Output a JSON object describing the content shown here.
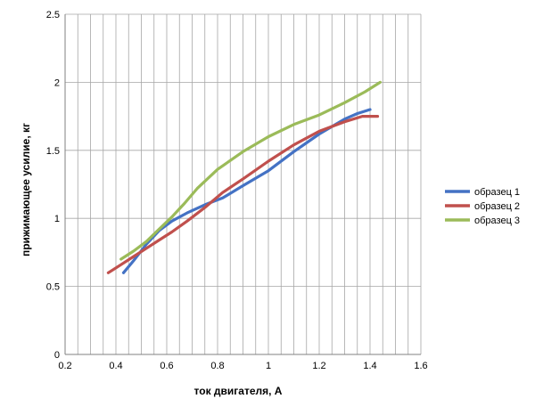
{
  "chart_data": {
    "type": "line",
    "title": "",
    "xlabel": "ток двигателя, А",
    "ylabel": "прижимающее усилие, кг",
    "xlim": [
      0.2,
      1.6
    ],
    "ylim": [
      0,
      2.5
    ],
    "x_ticks": [
      "0.2",
      "0.4",
      "0.6",
      "0.8",
      "1",
      "1.2",
      "1.4",
      "1.6"
    ],
    "y_ticks": [
      "0",
      "0.5",
      "1",
      "1.5",
      "2",
      "2.5"
    ],
    "x_tick_values": [
      0.2,
      0.4,
      0.6,
      0.8,
      1.0,
      1.2,
      1.4,
      1.6
    ],
    "y_tick_values": [
      0,
      0.5,
      1.0,
      1.5,
      2.0,
      2.5
    ],
    "grid": {
      "vertical_minor_step": 0.05,
      "horizontal_step": 0.5
    },
    "legend_position": "right",
    "series": [
      {
        "name": "образец 1",
        "color": "#4472C4",
        "x": [
          0.43,
          0.47,
          0.52,
          0.57,
          0.62,
          0.68,
          0.75,
          0.82,
          0.9,
          1.0,
          1.1,
          1.2,
          1.3,
          1.35,
          1.4
        ],
        "y": [
          0.6,
          0.69,
          0.81,
          0.91,
          0.98,
          1.04,
          1.1,
          1.15,
          1.24,
          1.35,
          1.49,
          1.62,
          1.73,
          1.77,
          1.8
        ]
      },
      {
        "name": "образец 2",
        "color": "#C0504D",
        "x": [
          0.37,
          0.42,
          0.47,
          0.52,
          0.57,
          0.62,
          0.68,
          0.75,
          0.82,
          0.9,
          1.0,
          1.1,
          1.2,
          1.3,
          1.37,
          1.43
        ],
        "y": [
          0.6,
          0.66,
          0.72,
          0.78,
          0.84,
          0.9,
          0.98,
          1.08,
          1.19,
          1.29,
          1.42,
          1.54,
          1.64,
          1.71,
          1.75,
          1.75
        ]
      },
      {
        "name": "образец 3",
        "color": "#9BBB59",
        "x": [
          0.42,
          0.47,
          0.52,
          0.57,
          0.62,
          0.67,
          0.72,
          0.8,
          0.9,
          1.0,
          1.1,
          1.2,
          1.3,
          1.38,
          1.44
        ],
        "y": [
          0.7,
          0.76,
          0.83,
          0.92,
          1.01,
          1.11,
          1.22,
          1.36,
          1.49,
          1.6,
          1.69,
          1.76,
          1.85,
          1.93,
          2.0
        ]
      }
    ]
  }
}
